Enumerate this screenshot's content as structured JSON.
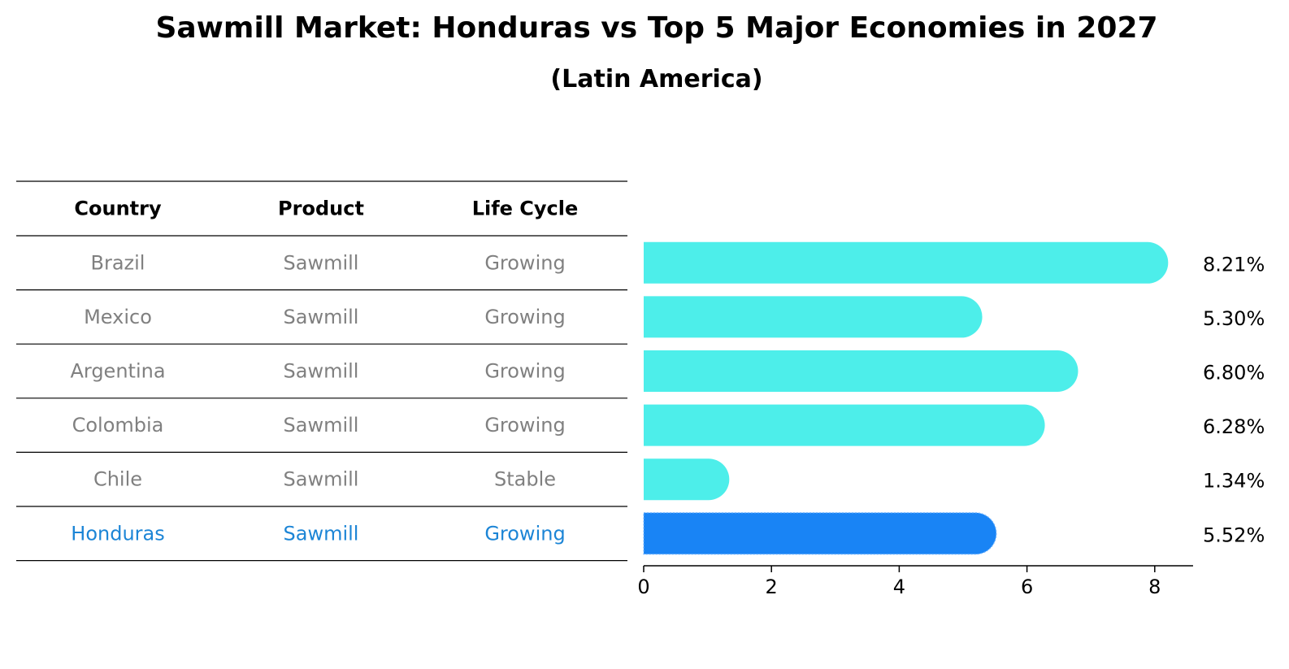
{
  "title": "Sawmill Market: Honduras vs Top 5 Major Economies in 2027",
  "subtitle": "(Latin America)",
  "table": {
    "headers": [
      "Country",
      "Product",
      "Life Cycle"
    ],
    "rows": [
      {
        "country": "Brazil",
        "product": "Sawmill",
        "life_cycle": "Growing",
        "highlight": false
      },
      {
        "country": "Mexico",
        "product": "Sawmill",
        "life_cycle": "Growing",
        "highlight": false
      },
      {
        "country": "Argentina",
        "product": "Sawmill",
        "life_cycle": "Growing",
        "highlight": false
      },
      {
        "country": "Colombia",
        "product": "Sawmill",
        "life_cycle": "Growing",
        "highlight": false
      },
      {
        "country": "Chile",
        "product": "Sawmill",
        "life_cycle": "Stable",
        "highlight": false
      },
      {
        "country": "Honduras",
        "product": "Sawmill",
        "life_cycle": "Growing",
        "highlight": true
      }
    ]
  },
  "colors": {
    "bar": "#4DEEEA",
    "highlight_bar": "#1984F5",
    "highlight_text": "#1C85D6",
    "muted_text": "#808080",
    "rule": "#000000"
  },
  "chart_data": {
    "type": "bar",
    "orientation": "horizontal",
    "categories": [
      "Brazil",
      "Mexico",
      "Argentina",
      "Colombia",
      "Chile",
      "Honduras"
    ],
    "values": [
      8.21,
      5.3,
      6.8,
      6.28,
      1.34,
      5.52
    ],
    "value_labels": [
      "8.21%",
      "5.30%",
      "6.80%",
      "6.28%",
      "1.34%",
      "5.52%"
    ],
    "highlight": "Honduras",
    "xlim": [
      0,
      8.6
    ],
    "xticks": [
      0,
      2,
      4,
      6,
      8
    ],
    "xtick_labels": [
      "0",
      "2",
      "4",
      "6",
      "8"
    ],
    "grid": false,
    "xlabel": "",
    "ylabel": ""
  }
}
